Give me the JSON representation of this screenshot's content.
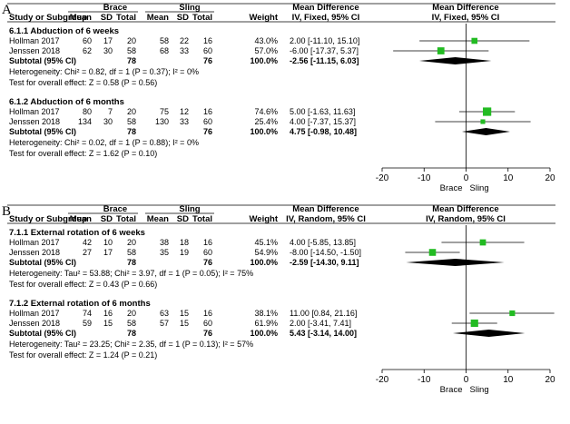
{
  "chart_data": [
    {
      "type": "forest",
      "panel": "A",
      "headers": {
        "group": "Brace",
        "control": "Sling",
        "study": "Study or Subgroup",
        "mean": "Mean",
        "sd": "SD",
        "total": "Total",
        "weight": "Weight",
        "md": "Mean Difference",
        "md_method": "IV, Fixed, 95% CI",
        "plot_title": "Mean Difference",
        "plot_method": "IV, Fixed, 95% CI"
      },
      "axis": {
        "ticks": [
          "-20",
          "-10",
          "0",
          "10",
          "20"
        ],
        "xlim": [
          -20,
          20
        ]
      },
      "favours": {
        "left": "Brace",
        "right": "Sling"
      },
      "subgroups": [
        {
          "title": "6.1.1 Abduction of 6 weeks",
          "studies": [
            {
              "name": "Hollman 2017",
              "mean1": "60",
              "sd1": "17",
              "n1": "20",
              "mean2": "58",
              "sd2": "22",
              "n2": "16",
              "weight_label": "43.0%",
              "weight": 43.0,
              "ci_text": "2.00 [-11.10, 15.10]",
              "md": 2.0,
              "lo": -11.1,
              "hi": 15.1
            },
            {
              "name": "Jenssen 2018",
              "mean1": "62",
              "sd1": "30",
              "n1": "58",
              "mean2": "68",
              "sd2": "33",
              "n2": "60",
              "weight_label": "57.0%",
              "weight": 57.0,
              "ci_text": "-6.00 [-17.37, 5.37]",
              "md": -6.0,
              "lo": -17.37,
              "hi": 5.37
            }
          ],
          "subtotal": {
            "label": "Subtotal (95% CI)",
            "n1": "78",
            "n2": "76",
            "weight_label": "100.0%",
            "ci_text": "-2.56 [-11.15, 6.03]",
            "md": -2.56,
            "lo": -11.15,
            "hi": 6.03
          },
          "heterogeneity": "Heterogeneity: Chi² = 0.82, df = 1 (P = 0.37); I² = 0%",
          "overall": "Test for overall effect: Z = 0.58 (P = 0.56)"
        },
        {
          "title": "6.1.2 Abduction of 6 months",
          "studies": [
            {
              "name": "Hollman 2017",
              "mean1": "80",
              "sd1": "7",
              "n1": "20",
              "mean2": "75",
              "sd2": "12",
              "n2": "16",
              "weight_label": "74.6%",
              "weight": 74.6,
              "ci_text": "5.00 [-1.63, 11.63]",
              "md": 5.0,
              "lo": -1.63,
              "hi": 11.63
            },
            {
              "name": "Jenssen 2018",
              "mean1": "134",
              "sd1": "30",
              "n1": "58",
              "mean2": "130",
              "sd2": "33",
              "n2": "60",
              "weight_label": "25.4%",
              "weight": 25.4,
              "ci_text": "4.00 [-7.37, 15.37]",
              "md": 4.0,
              "lo": -7.37,
              "hi": 15.37
            }
          ],
          "subtotal": {
            "label": "Subtotal (95% CI)",
            "n1": "78",
            "n2": "76",
            "weight_label": "100.0%",
            "ci_text": "4.75 [-0.98, 10.48]",
            "md": 4.75,
            "lo": -0.98,
            "hi": 10.48
          },
          "heterogeneity": "Heterogeneity: Chi² = 0.02, df = 1 (P = 0.88); I² = 0%",
          "overall": "Test for overall effect: Z = 1.62 (P = 0.10)"
        }
      ]
    },
    {
      "type": "forest",
      "panel": "B",
      "headers": {
        "group": "Brace",
        "control": "Sling",
        "study": "Study or Subgroup",
        "mean": "Mean",
        "sd": "SD",
        "total": "Total",
        "weight": "Weight",
        "md": "Mean Difference",
        "md_method": "IV, Random, 95% CI",
        "plot_title": "Mean Difference",
        "plot_method": "IV, Random, 95% CI"
      },
      "axis": {
        "ticks": [
          "-20",
          "-10",
          "0",
          "10",
          "20"
        ],
        "xlim": [
          -20,
          20
        ]
      },
      "favours": {
        "left": "Brace",
        "right": "Sling"
      },
      "subgroups": [
        {
          "title": "7.1.1 External rotation of 6 weeks",
          "studies": [
            {
              "name": "Hollman 2017",
              "mean1": "42",
              "sd1": "10",
              "n1": "20",
              "mean2": "38",
              "sd2": "18",
              "n2": "16",
              "weight_label": "45.1%",
              "weight": 45.1,
              "ci_text": "4.00 [-5.85, 13.85]",
              "md": 4.0,
              "lo": -5.85,
              "hi": 13.85
            },
            {
              "name": "Jenssen 2018",
              "mean1": "27",
              "sd1": "17",
              "n1": "58",
              "mean2": "35",
              "sd2": "19",
              "n2": "60",
              "weight_label": "54.9%",
              "weight": 54.9,
              "ci_text": "-8.00 [-14.50, -1.50]",
              "md": -8.0,
              "lo": -14.5,
              "hi": -1.5
            }
          ],
          "subtotal": {
            "label": "Subtotal (95% CI)",
            "n1": "78",
            "n2": "76",
            "weight_label": "100.0%",
            "ci_text": "-2.59 [-14.30, 9.11]",
            "md": -2.59,
            "lo": -14.3,
            "hi": 9.11
          },
          "heterogeneity": "Heterogeneity: Tau² = 53.88; Chi² = 3.97, df = 1 (P = 0.05); I² = 75%",
          "overall": "Test for overall effect: Z = 0.43 (P = 0.66)"
        },
        {
          "title": "7.1.2 External rotation of 6 months",
          "studies": [
            {
              "name": "Hollman 2017",
              "mean1": "74",
              "sd1": "16",
              "n1": "20",
              "mean2": "63",
              "sd2": "15",
              "n2": "16",
              "weight_label": "38.1%",
              "weight": 38.1,
              "ci_text": "11.00 [0.84, 21.16]",
              "md": 11.0,
              "lo": 0.84,
              "hi": 21.16
            },
            {
              "name": "Jenssen 2018",
              "mean1": "59",
              "sd1": "15",
              "n1": "58",
              "mean2": "57",
              "sd2": "15",
              "n2": "60",
              "weight_label": "61.9%",
              "weight": 61.9,
              "ci_text": "2.00 [-3.41, 7.41]",
              "md": 2.0,
              "lo": -3.41,
              "hi": 7.41
            }
          ],
          "subtotal": {
            "label": "Subtotal (95% CI)",
            "n1": "78",
            "n2": "76",
            "weight_label": "100.0%",
            "ci_text": "5.43 [-3.14, 14.00]",
            "md": 5.43,
            "lo": -3.14,
            "hi": 14.0
          },
          "heterogeneity": "Heterogeneity: Tau² = 23.25; Chi² = 2.35, df = 1 (P = 0.13); I² = 57%",
          "overall": "Test for overall effect: Z = 1.24 (P = 0.21)"
        }
      ]
    }
  ],
  "colors": {
    "marker": "#22bb22",
    "ink": "#000000",
    "background": "#ffffff"
  }
}
